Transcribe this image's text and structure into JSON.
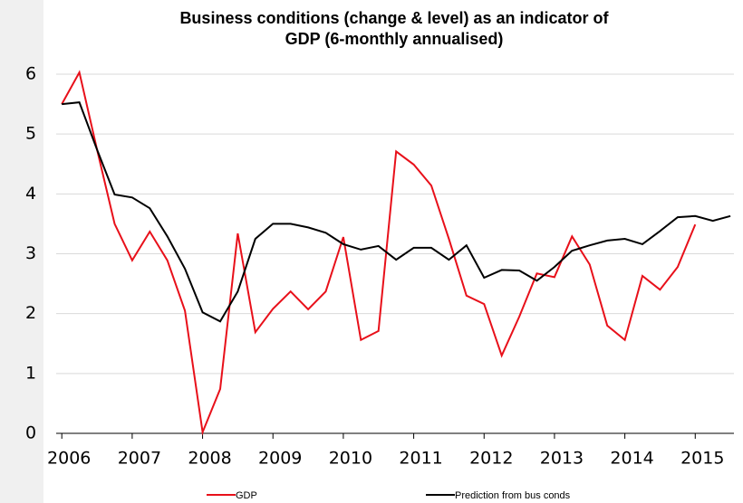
{
  "chart_data": {
    "type": "line",
    "title": [
      "Business conditions (change & level) as an indicator of",
      "GDP (6-monthly annualised)"
    ],
    "x": [
      2006,
      2006.25,
      2006.5,
      2006.75,
      2007,
      2007.25,
      2007.5,
      2007.75,
      2008,
      2008.25,
      2008.5,
      2008.75,
      2009,
      2009.25,
      2009.5,
      2009.75,
      2010,
      2010.25,
      2010.5,
      2010.75,
      2011,
      2011.25,
      2011.5,
      2011.75,
      2012,
      2012.25,
      2012.5,
      2012.75,
      2013,
      2013.25,
      2013.5,
      2013.75,
      2014,
      2014.25,
      2014.5,
      2014.75,
      2015,
      2015.25,
      2015.5
    ],
    "series": [
      {
        "name": "GDP",
        "color": "#e8101a",
        "values": [
          5.5,
          6.03,
          4.74,
          3.5,
          2.89,
          3.37,
          2.89,
          2.05,
          0.02,
          0.74,
          3.34,
          1.69,
          2.08,
          2.37,
          2.07,
          2.37,
          3.28,
          1.56,
          1.71,
          4.71,
          4.49,
          4.14,
          3.25,
          2.3,
          2.16,
          1.3,
          1.95,
          2.67,
          2.61,
          3.29,
          2.82,
          1.8,
          1.56,
          2.63,
          2.4,
          2.78,
          3.49,
          null,
          null
        ]
      },
      {
        "name": "Prediction from bus conds",
        "color": "#000000",
        "values": [
          5.5,
          5.53,
          4.74,
          3.99,
          3.94,
          3.76,
          3.29,
          2.75,
          2.02,
          1.87,
          2.37,
          3.25,
          3.5,
          3.5,
          3.44,
          3.35,
          3.16,
          3.07,
          3.13,
          2.9,
          3.1,
          3.1,
          2.9,
          3.14,
          2.6,
          2.73,
          2.72,
          2.55,
          2.78,
          3.05,
          3.14,
          3.22,
          3.25,
          3.16,
          3.38,
          3.61,
          3.63,
          3.55,
          3.63
        ]
      }
    ],
    "xlim": [
      2005.92,
      2015.55
    ],
    "xticks": [
      2006,
      2007,
      2008,
      2009,
      2010,
      2011,
      2012,
      2013,
      2014,
      2015
    ],
    "ylim": [
      0,
      6
    ],
    "yticks": [
      0,
      1,
      2,
      3,
      4,
      5,
      6
    ],
    "grid": true,
    "legend": "bottom"
  }
}
